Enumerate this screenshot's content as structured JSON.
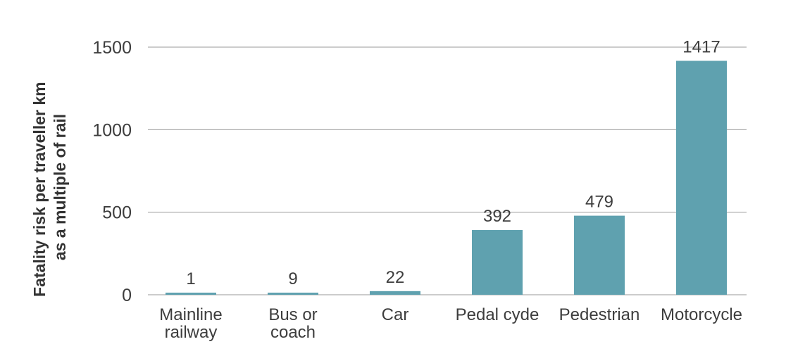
{
  "chart_data": {
    "type": "bar",
    "title": "",
    "xlabel": "",
    "ylabel_lines": [
      "Fatality risk per traveller km",
      "as a multiple of rail"
    ],
    "categories": [
      [
        "Mainline",
        "railway"
      ],
      [
        "Bus or",
        "coach"
      ],
      [
        "Car"
      ],
      [
        "Pedal cyde"
      ],
      [
        "Pedestrian"
      ],
      [
        "Motorcycle"
      ]
    ],
    "values": [
      1,
      9,
      22,
      392,
      479,
      1417
    ],
    "data_labels": [
      "1",
      "9",
      "22",
      "392",
      "479",
      "1417"
    ],
    "ylim": [
      0,
      1500
    ],
    "yticks": [
      0,
      500,
      1000,
      1500
    ],
    "ytick_labels": [
      "0",
      "500",
      "1000",
      "1500"
    ],
    "grid": true,
    "legend": "none",
    "colors": {
      "bar": "#5fa1af",
      "grid": "#9a9a9a",
      "text": "#3d3d3d"
    }
  }
}
